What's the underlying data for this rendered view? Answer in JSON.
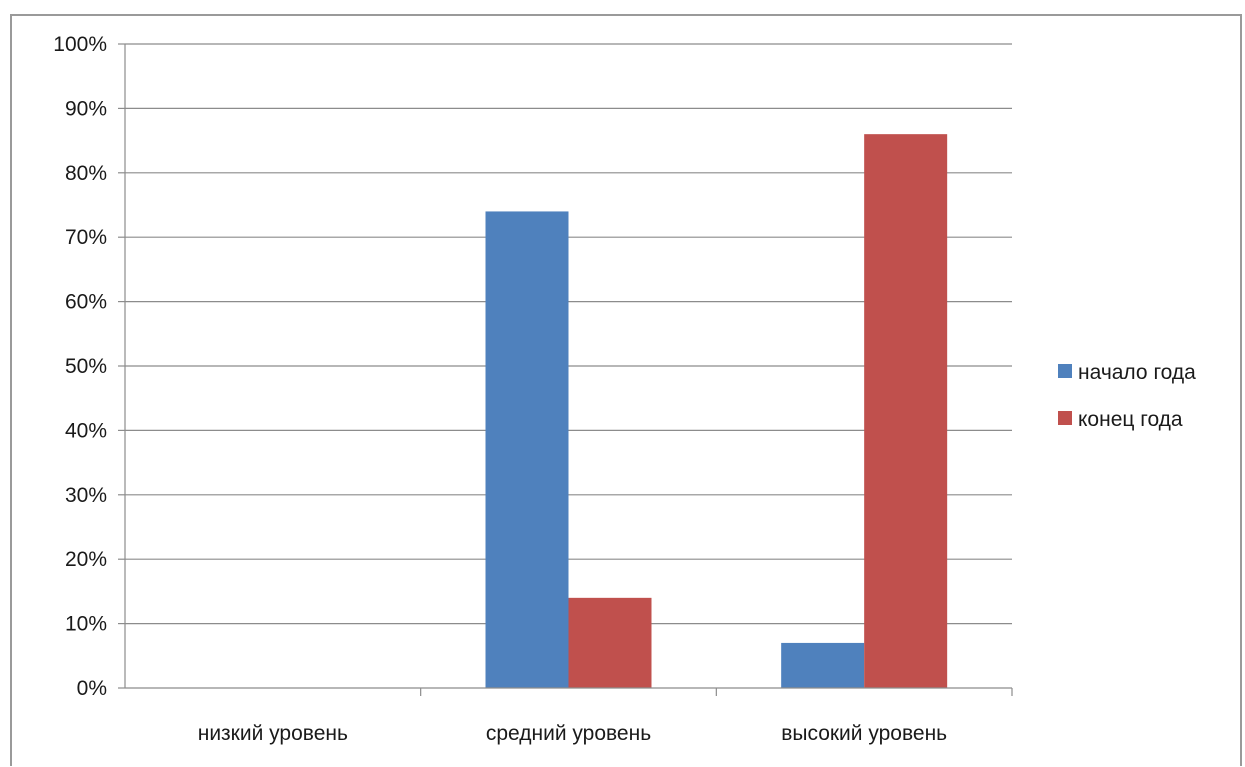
{
  "chart_data": {
    "type": "bar",
    "categories": [
      "низкий уровень",
      "средний уровень",
      "высокий уровень"
    ],
    "series": [
      {
        "name": "начало года",
        "values": [
          0,
          74,
          7
        ],
        "color": "#4f81bd"
      },
      {
        "name": "конец года",
        "values": [
          0,
          14,
          86
        ],
        "color": "#c0504d"
      }
    ],
    "ylim": [
      0,
      100
    ],
    "yticks": [
      "0%",
      "10%",
      "20%",
      "30%",
      "40%",
      "50%",
      "60%",
      "70%",
      "80%",
      "90%",
      "100%"
    ],
    "y_unit": "%",
    "grid": true,
    "legend_position": "right",
    "title": "",
    "xlabel": "",
    "ylabel": ""
  }
}
